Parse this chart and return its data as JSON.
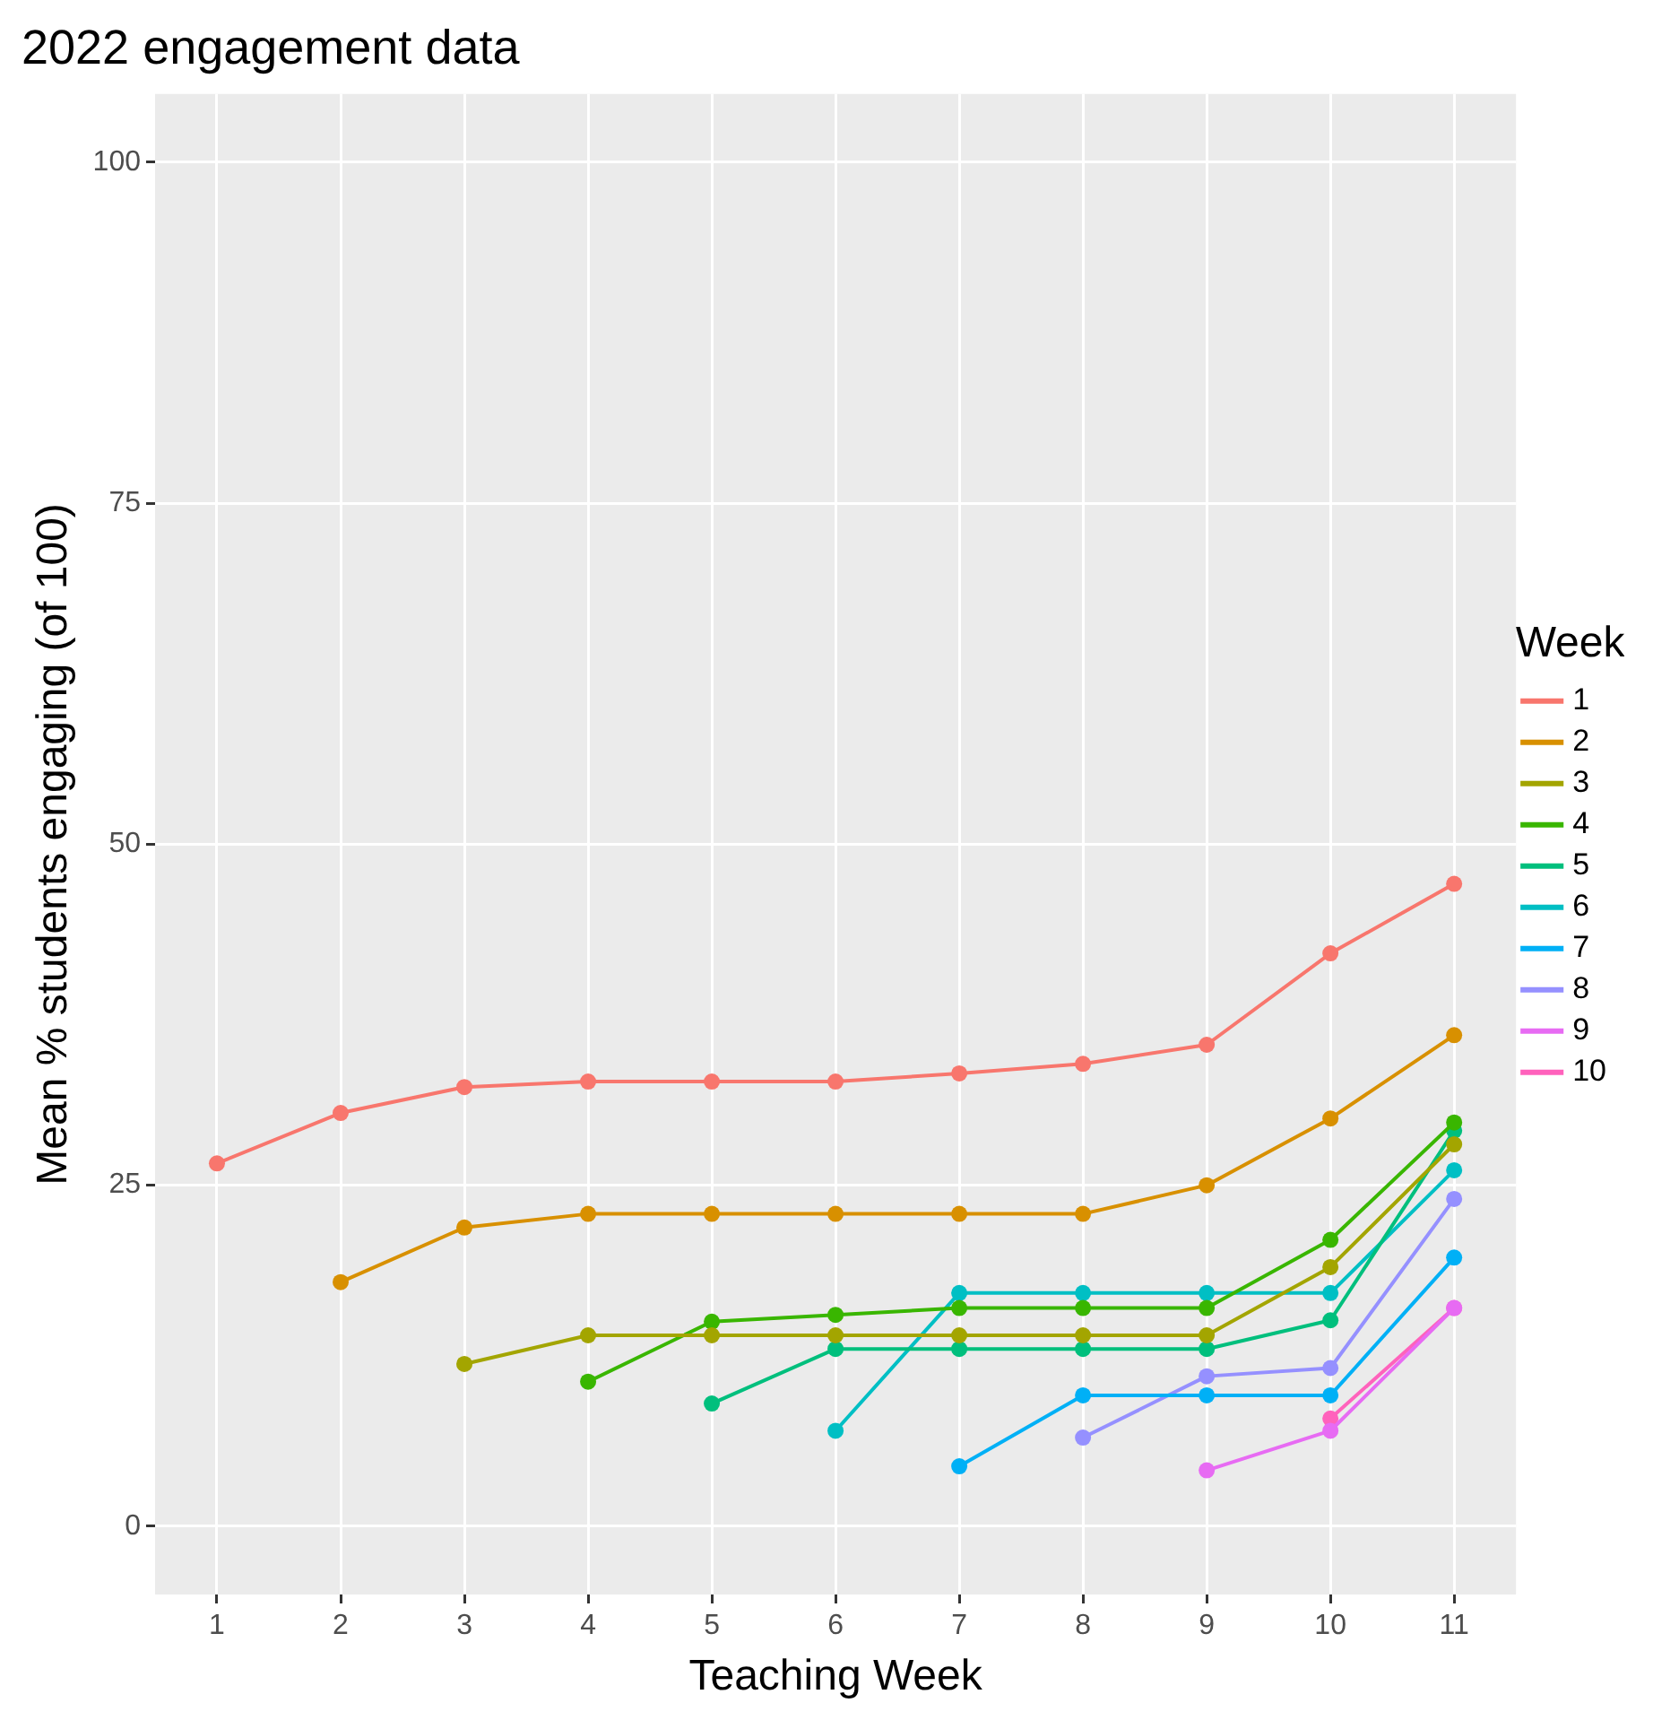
{
  "chart_data": {
    "type": "line",
    "title": "2022 engagement data",
    "xlabel": "Teaching Week",
    "ylabel": "Mean % students engaging (of 100)",
    "legend_title": "Week",
    "legend": "right",
    "grid": true,
    "marker": "circle",
    "line_style": "solid",
    "xlim": [
      0.5,
      11.5
    ],
    "xticks": [
      1,
      2,
      3,
      4,
      5,
      6,
      7,
      8,
      9,
      10,
      11
    ],
    "ylim": [
      -5,
      105
    ],
    "yticks": [
      0,
      25,
      50,
      75,
      100
    ],
    "series": [
      {
        "name": "1",
        "color": "#f8766d",
        "x": [
          1,
          2,
          3,
          4,
          5,
          6,
          7,
          8,
          9,
          10,
          11
        ],
        "values": [
          26.6,
          30.3,
          32.2,
          32.6,
          32.6,
          32.6,
          33.2,
          33.9,
          35.3,
          42.0,
          47.1
        ]
      },
      {
        "name": "2",
        "color": "#d89000",
        "x": [
          2,
          3,
          4,
          5,
          6,
          7,
          8,
          9,
          10,
          11
        ],
        "values": [
          17.9,
          21.9,
          22.9,
          22.9,
          22.9,
          22.9,
          22.9,
          25.0,
          29.9,
          36.0
        ]
      },
      {
        "name": "3",
        "color": "#a3a500",
        "x": [
          3,
          4,
          5,
          6,
          7,
          8,
          9,
          10,
          11
        ],
        "values": [
          11.9,
          14.0,
          14.0,
          14.0,
          14.0,
          14.0,
          14.0,
          19.0,
          28.0
        ]
      },
      {
        "name": "4",
        "color": "#39b600",
        "x": [
          4,
          5,
          6,
          7,
          8,
          9,
          10,
          11
        ],
        "values": [
          10.6,
          15.0,
          15.5,
          16.0,
          16.0,
          16.0,
          21.0,
          29.6
        ]
      },
      {
        "name": "5",
        "color": "#00bf7d",
        "x": [
          5,
          6,
          7,
          8,
          9,
          10,
          11
        ],
        "values": [
          9.0,
          13.0,
          13.0,
          13.0,
          13.0,
          15.1,
          29.0
        ]
      },
      {
        "name": "6",
        "color": "#00bfc4",
        "x": [
          6,
          7,
          8,
          9,
          10,
          11
        ],
        "values": [
          7.0,
          17.1,
          17.1,
          17.1,
          17.1,
          26.1
        ]
      },
      {
        "name": "7",
        "color": "#00b0f6",
        "x": [
          7,
          8,
          9,
          10,
          11
        ],
        "values": [
          4.4,
          9.6,
          9.6,
          9.6,
          19.7
        ]
      },
      {
        "name": "8",
        "color": "#9590ff",
        "x": [
          8,
          9,
          10,
          11
        ],
        "values": [
          6.5,
          11.0,
          11.6,
          24.0
        ]
      },
      {
        "name": "9",
        "color": "#e76bf3",
        "x": [
          9,
          10,
          11
        ],
        "values": [
          4.1,
          7.0,
          16.0
        ]
      },
      {
        "name": "10",
        "color": "#ff62bc",
        "x": [
          10,
          11
        ],
        "values": [
          7.9,
          16.0
        ]
      }
    ]
  }
}
